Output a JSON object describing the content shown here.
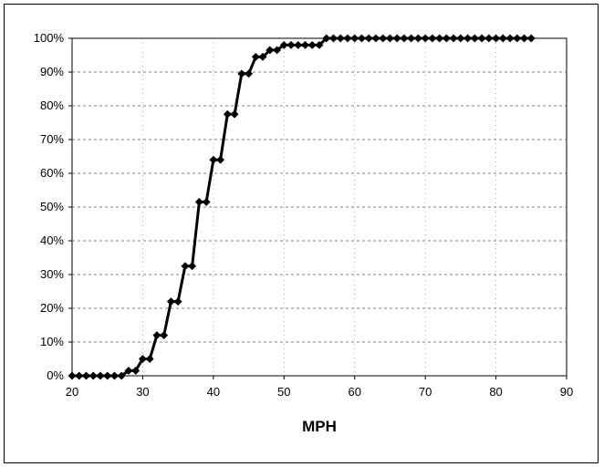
{
  "chart_data": {
    "type": "line",
    "title": "",
    "xlabel": "MPH",
    "ylabel": "",
    "xlim": [
      20,
      90
    ],
    "ylim": [
      0,
      100
    ],
    "x_ticks": [
      "20",
      "30",
      "40",
      "50",
      "60",
      "70",
      "80",
      "90"
    ],
    "y_ticks": [
      "0%",
      "10%",
      "20%",
      "30%",
      "40%",
      "50%",
      "60%",
      "70%",
      "80%",
      "90%",
      "100%"
    ],
    "grid": true,
    "legend": "none",
    "series": [
      {
        "color": "#000000",
        "marker": "diamond",
        "x": [
          20,
          21,
          22,
          23,
          24,
          25,
          26,
          27,
          28,
          29,
          30,
          31,
          32,
          33,
          34,
          35,
          36,
          37,
          38,
          39,
          40,
          41,
          42,
          43,
          44,
          45,
          46,
          47,
          48,
          49,
          50,
          51,
          52,
          53,
          54,
          55,
          56,
          57,
          58,
          59,
          60,
          61,
          62,
          63,
          64,
          65,
          66,
          67,
          68,
          69,
          70,
          71,
          72,
          73,
          74,
          75,
          76,
          77,
          78,
          79,
          80,
          81,
          82,
          83,
          84,
          85
        ],
        "y": [
          0,
          0,
          0,
          0,
          0,
          0,
          0,
          0,
          1.5,
          1.5,
          5,
          5,
          12,
          12,
          22,
          22,
          32.5,
          32.5,
          51.5,
          51.5,
          64,
          64,
          77.5,
          77.5,
          89.5,
          89.5,
          94.5,
          94.5,
          96.5,
          96.5,
          98,
          98,
          98,
          98,
          98,
          98,
          100,
          100,
          100,
          100,
          100,
          100,
          100,
          100,
          100,
          100,
          100,
          100,
          100,
          100,
          100,
          100,
          100,
          100,
          100,
          100,
          100,
          100,
          100,
          100,
          100,
          100,
          100,
          100,
          100,
          100
        ]
      }
    ]
  }
}
